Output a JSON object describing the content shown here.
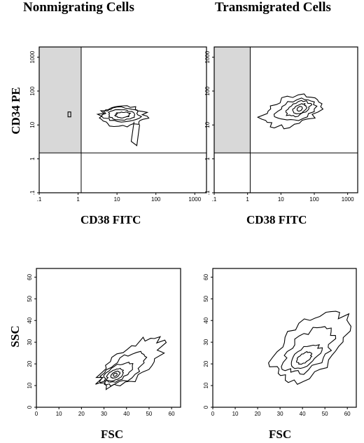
{
  "figure": {
    "left_column_title": "Nonmigrating Cells",
    "right_column_title": "Transmigrated Cells",
    "top_y_label": "CD34 PE",
    "top_x_label": "CD38 FITC",
    "bottom_y_label": "SSC",
    "bottom_x_label": "FSC"
  },
  "chart_data": [
    {
      "type": "contour",
      "panel": "top-left",
      "title": "Nonmigrating Cells",
      "xlabel": "CD38 FITC",
      "ylabel": "CD34 PE",
      "xscale": "log",
      "yscale": "log",
      "xlim": [
        0.1,
        2000
      ],
      "ylim": [
        0.1,
        2000
      ],
      "xticks": [
        ".1",
        "1",
        "10",
        "100",
        "1000"
      ],
      "yticks": [
        ".1",
        "1",
        "10",
        "100",
        "1000"
      ],
      "quadrant_gate": {
        "x": 1.2,
        "y": 1.5
      },
      "shaded_region": "x < 1.2, y > 1.5",
      "population": {
        "center_x": 15,
        "center_y": 20,
        "note": "contours spanning CD38 ~2-60, CD34 ~3-60, tail down to ~2"
      }
    },
    {
      "type": "contour",
      "panel": "top-right",
      "title": "Transmigrated Cells",
      "xlabel": "CD38 FITC",
      "ylabel": "CD34 PE",
      "xscale": "log",
      "yscale": "log",
      "xlim": [
        0.1,
        2000
      ],
      "ylim": [
        0.1,
        2000
      ],
      "xticks": [
        ".1",
        "1",
        "10",
        "100",
        "1000"
      ],
      "yticks": [
        ".1",
        "1",
        "10",
        "100",
        "1000"
      ],
      "quadrant_gate": {
        "x": 1.2,
        "y": 1.5
      },
      "shaded_region": "x < 1.2, y > 1.5",
      "population": {
        "center_x": 30,
        "center_y": 30,
        "note": "contours spanning CD38 ~2-90, CD34 ~8-90"
      }
    },
    {
      "type": "contour",
      "panel": "bottom-left",
      "title": "Nonmigrating Cells",
      "xlabel": "FSC",
      "ylabel": "SSC",
      "xlim": [
        0,
        64
      ],
      "ylim": [
        0,
        64
      ],
      "xticks": [
        0,
        10,
        20,
        30,
        40,
        50,
        60
      ],
      "yticks": [
        0,
        10,
        20,
        30,
        40,
        50,
        60
      ],
      "population": {
        "center_x": 35,
        "center_y": 15,
        "note": "elongated diagonal contours FSC ~29-60, SSC ~10-35"
      }
    },
    {
      "type": "contour",
      "panel": "bottom-right",
      "title": "Transmigrated Cells",
      "xlabel": "FSC",
      "ylabel": "SSC",
      "xlim": [
        0,
        64
      ],
      "ylim": [
        0,
        64
      ],
      "xticks": [
        0,
        10,
        20,
        30,
        40,
        50,
        60
      ],
      "yticks": [
        0,
        10,
        20,
        30,
        40,
        50,
        60
      ],
      "population": {
        "center_x": 42,
        "center_y": 22,
        "note": "broad diagonal contours FSC ~26-62, SSC ~10-46"
      }
    }
  ]
}
